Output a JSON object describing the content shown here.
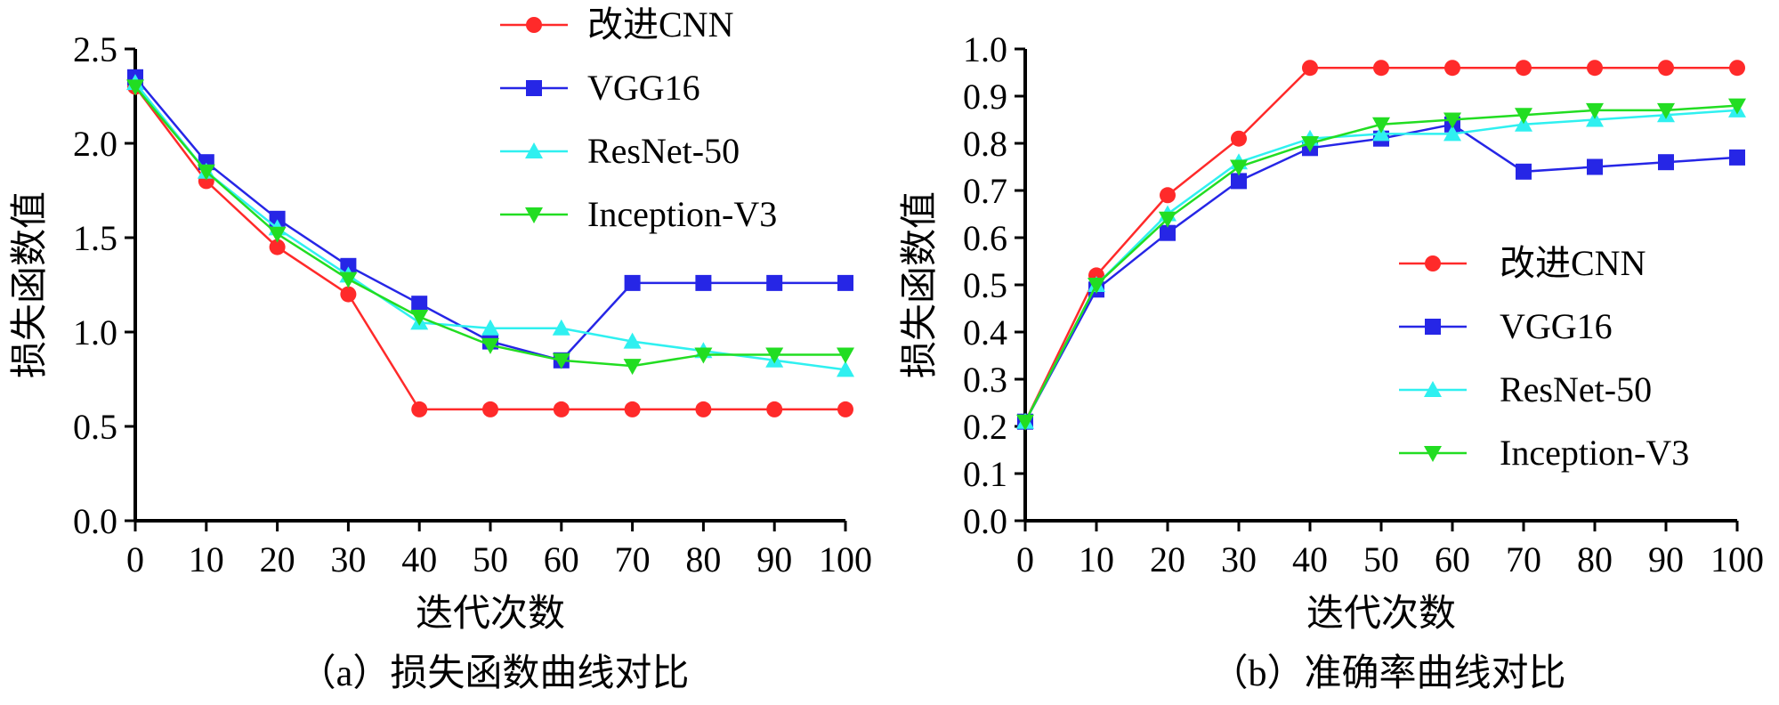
{
  "chart_data": [
    {
      "type": "line",
      "panel": "a",
      "caption": "（a）损失函数曲线对比",
      "xlabel": "迭代次数",
      "ylabel": "损失函数值",
      "x": [
        0,
        10,
        20,
        30,
        40,
        50,
        60,
        70,
        80,
        90,
        100
      ],
      "x_tick_labels": [
        "0",
        "10",
        "20",
        "30",
        "40",
        "50",
        "60",
        "70",
        "80",
        "90",
        "100"
      ],
      "y_tick_labels": [
        "0.0",
        "0.5",
        "1.0",
        "1.5",
        "2.0",
        "2.5"
      ],
      "xlim": [
        0,
        100
      ],
      "ylim": [
        0,
        2.5
      ],
      "yticks": [
        0,
        0.5,
        1.0,
        1.5,
        2.0,
        2.5
      ],
      "grid": false,
      "legend_position": "top-right",
      "series": [
        {
          "name": "改进CNN",
          "marker": "circle",
          "color": "#ff2a2a",
          "values": [
            2.3,
            1.8,
            1.45,
            1.2,
            0.59,
            0.59,
            0.59,
            0.59,
            0.59,
            0.59,
            0.59
          ]
        },
        {
          "name": "VGG16",
          "marker": "square",
          "color": "#2626e6",
          "values": [
            2.35,
            1.9,
            1.6,
            1.35,
            1.15,
            0.95,
            0.85,
            1.26,
            1.26,
            1.26,
            1.26
          ]
        },
        {
          "name": "ResNet-50",
          "marker": "triangle-up",
          "color": "#2ff0f0",
          "values": [
            2.32,
            1.85,
            1.55,
            1.3,
            1.05,
            1.02,
            1.02,
            0.95,
            0.9,
            0.85,
            0.8
          ]
        },
        {
          "name": "Inception-V3",
          "marker": "triangle-down",
          "color": "#22dd22",
          "values": [
            2.3,
            1.85,
            1.52,
            1.28,
            1.08,
            0.93,
            0.85,
            0.82,
            0.88,
            0.88,
            0.88
          ]
        }
      ]
    },
    {
      "type": "line",
      "panel": "b",
      "caption": "（b）准确率曲线对比",
      "xlabel": "迭代次数",
      "ylabel": "损失函数值",
      "x": [
        0,
        10,
        20,
        30,
        40,
        50,
        60,
        70,
        80,
        90,
        100
      ],
      "x_tick_labels": [
        "0",
        "10",
        "20",
        "30",
        "40",
        "50",
        "60",
        "70",
        "80",
        "90",
        "100"
      ],
      "y_tick_labels": [
        "0.0",
        "0.1",
        "0.2",
        "0.3",
        "0.4",
        "0.5",
        "0.6",
        "0.7",
        "0.8",
        "0.9",
        "1.0"
      ],
      "xlim": [
        0,
        100
      ],
      "ylim": [
        0,
        1.0
      ],
      "yticks": [
        0,
        0.1,
        0.2,
        0.3,
        0.4,
        0.5,
        0.6,
        0.7,
        0.8,
        0.9,
        1.0
      ],
      "grid": false,
      "legend_position": "center-right",
      "series": [
        {
          "name": "改进CNN",
          "marker": "circle",
          "color": "#ff2a2a",
          "values": [
            0.21,
            0.52,
            0.69,
            0.81,
            0.96,
            0.96,
            0.96,
            0.96,
            0.96,
            0.96,
            0.96
          ]
        },
        {
          "name": "VGG16",
          "marker": "square",
          "color": "#2626e6",
          "values": [
            0.21,
            0.49,
            0.61,
            0.72,
            0.79,
            0.81,
            0.84,
            0.74,
            0.75,
            0.76,
            0.77
          ]
        },
        {
          "name": "ResNet-50",
          "marker": "triangle-up",
          "color": "#2ff0f0",
          "values": [
            0.21,
            0.5,
            0.65,
            0.76,
            0.81,
            0.82,
            0.82,
            0.84,
            0.85,
            0.86,
            0.87
          ]
        },
        {
          "name": "Inception-V3",
          "marker": "triangle-down",
          "color": "#22dd22",
          "values": [
            0.21,
            0.5,
            0.64,
            0.75,
            0.8,
            0.84,
            0.85,
            0.86,
            0.87,
            0.87,
            0.88
          ]
        }
      ]
    }
  ]
}
